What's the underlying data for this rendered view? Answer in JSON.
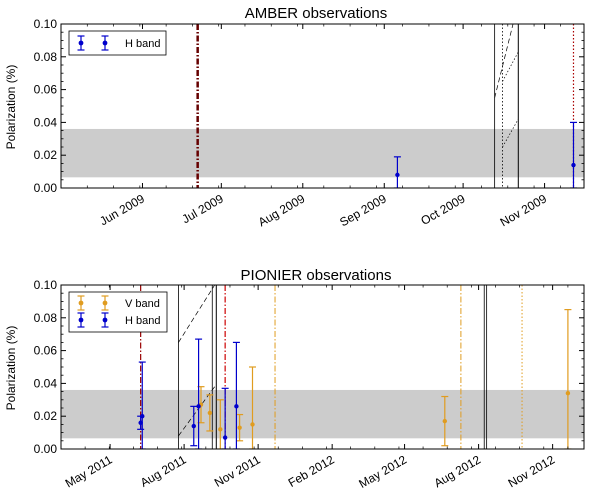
{
  "chart_data": [
    {
      "type": "scatter",
      "title": "AMBER observations",
      "ylabel": "Polarization (%)",
      "xlabel": "",
      "ylim": [
        0,
        0.1
      ],
      "yticks": [
        "0.00",
        "0.02",
        "0.04",
        "0.06",
        "0.08",
        "0.10"
      ],
      "xrange": [
        "2009-05-01",
        "2009-11-16"
      ],
      "xticks": [
        {
          "date": "2009-06-01",
          "label": "Jun 2009"
        },
        {
          "date": "2009-07-01",
          "label": "Jul 2009"
        },
        {
          "date": "2009-08-01",
          "label": "Aug 2009"
        },
        {
          "date": "2009-09-01",
          "label": "Sep 2009"
        },
        {
          "date": "2009-10-01",
          "label": "Oct 2009"
        },
        {
          "date": "2009-11-01",
          "label": "Nov 2009"
        }
      ],
      "band": [
        0.0065,
        0.036
      ],
      "legend": [
        {
          "name": "H band",
          "color": "#0000cc"
        }
      ],
      "series": [
        {
          "name": "H band",
          "color": "#0000cc",
          "points": [
            {
              "date": "2009-09-06",
              "y": 0.008,
              "err": 0.011
            },
            {
              "date": "2009-11-12",
              "y": 0.014,
              "err": 0.026
            }
          ]
        }
      ],
      "vlines": [
        {
          "date": "2009-06-22",
          "style": "dashdot",
          "color": "#660000",
          "width": 2.5
        },
        {
          "date": "2009-10-22",
          "style": "solid",
          "color": "#000000",
          "width": 1
        },
        {
          "date": "2009-11-12",
          "style": "dotted",
          "color": "#aa0000",
          "width": 1.2
        }
      ],
      "ylines": [
        {
          "date": "2009-10-13",
          "style": "solid",
          "color": "#000000",
          "width": 0.8
        },
        {
          "date": "2009-10-16",
          "style": "dotted",
          "color": "#000000",
          "width": 0.8
        }
      ],
      "slopes": [
        {
          "start": "2009-10-13",
          "end": "2009-10-20",
          "y0": 0.055,
          "y1": 0.1,
          "style": "dashed",
          "color": "#000000",
          "width": 0.7
        },
        {
          "start": "2009-10-16",
          "end": "2009-10-22",
          "y0": 0.065,
          "y1": 0.083,
          "style": "dotted",
          "color": "#000000",
          "width": 0.7
        },
        {
          "start": "2009-10-16",
          "end": "2009-10-22",
          "y0": 0.025,
          "y1": 0.042,
          "style": "dotted",
          "color": "#000000",
          "width": 0.7
        }
      ]
    },
    {
      "type": "scatter",
      "title": "PIONIER observations",
      "ylabel": "Polarization (%)",
      "xlabel": "",
      "ylim": [
        0,
        0.1
      ],
      "yticks": [
        "0.00",
        "0.02",
        "0.04",
        "0.06",
        "0.08",
        "0.10"
      ],
      "xrange": [
        "2011-03-01",
        "2012-12-10"
      ],
      "xticks": [
        {
          "date": "2011-05-01",
          "label": "May 2011"
        },
        {
          "date": "2011-08-01",
          "label": "Aug 2011"
        },
        {
          "date": "2011-11-01",
          "label": "Nov 2011"
        },
        {
          "date": "2012-02-01",
          "label": "Feb 2012"
        },
        {
          "date": "2012-05-01",
          "label": "May 2012"
        },
        {
          "date": "2012-08-01",
          "label": "Aug 2012"
        },
        {
          "date": "2012-11-01",
          "label": "Nov 2012"
        }
      ],
      "band": [
        0.0065,
        0.036
      ],
      "legend": [
        {
          "name": "V band",
          "color": "#e09c20"
        },
        {
          "name": "H band",
          "color": "#0000cc"
        }
      ],
      "series": [
        {
          "name": "V band",
          "color": "#e09c20",
          "points": [
            {
              "date": "2011-08-22",
              "y": 0.027,
              "err": 0.011
            },
            {
              "date": "2011-09-02",
              "y": 0.022,
              "err": 0.011
            },
            {
              "date": "2011-09-15",
              "y": 0.012,
              "err": 0.018
            },
            {
              "date": "2011-10-09",
              "y": 0.013,
              "err": 0.008
            },
            {
              "date": "2011-10-25",
              "y": 0.015,
              "err": 0.035
            },
            {
              "date": "2012-06-20",
              "y": 0.017,
              "err": 0.015
            },
            {
              "date": "2012-11-20",
              "y": 0.034,
              "err": 0.051
            }
          ]
        },
        {
          "name": "H band",
          "color": "#0000cc",
          "points": [
            {
              "date": "2011-06-08",
              "y": 0.016,
              "err": 0.004
            },
            {
              "date": "2011-06-10",
              "y": 0.02,
              "err": 0.033
            },
            {
              "date": "2011-08-13",
              "y": 0.014,
              "err": 0.012
            },
            {
              "date": "2011-08-19",
              "y": 0.026,
              "err": 0.041
            },
            {
              "date": "2011-09-21",
              "y": 0.007,
              "err": 0.03
            },
            {
              "date": "2011-10-05",
              "y": 0.026,
              "err": 0.039
            }
          ]
        }
      ],
      "vlines": [
        {
          "date": "2011-06-08",
          "style": "dashdot",
          "color": "#990000",
          "width": 1.2
        },
        {
          "date": "2011-07-25",
          "style": "solid",
          "color": "#000000",
          "width": 0.8
        },
        {
          "date": "2011-09-05",
          "style": "solid",
          "color": "#000000",
          "width": 0.8
        },
        {
          "date": "2011-09-10",
          "style": "solid",
          "color": "#000000",
          "width": 1
        },
        {
          "date": "2011-09-21",
          "style": "dashdot",
          "color": "#cc0000",
          "width": 1.2
        },
        {
          "date": "2011-11-22",
          "style": "dashdot",
          "color": "#e09c20",
          "width": 1
        },
        {
          "date": "2012-07-10",
          "style": "dashdot",
          "color": "#e09c20",
          "width": 1
        },
        {
          "date": "2012-08-08",
          "style": "solid",
          "color": "#000000",
          "width": 0.8
        },
        {
          "date": "2012-08-11",
          "style": "solid",
          "color": "#000000",
          "width": 0.8
        },
        {
          "date": "2012-09-24",
          "style": "dotted",
          "color": "#e09c20",
          "width": 1
        }
      ],
      "slopes": [
        {
          "start": "2011-07-25",
          "end": "2011-09-08",
          "y0": 0.065,
          "y1": 0.1,
          "style": "dashed",
          "color": "#000000",
          "width": 0.7
        },
        {
          "start": "2011-07-25",
          "end": "2011-09-08",
          "y0": 0.008,
          "y1": 0.038,
          "style": "dashed",
          "color": "#000000",
          "width": 0.7
        }
      ],
      "ylines": []
    }
  ]
}
